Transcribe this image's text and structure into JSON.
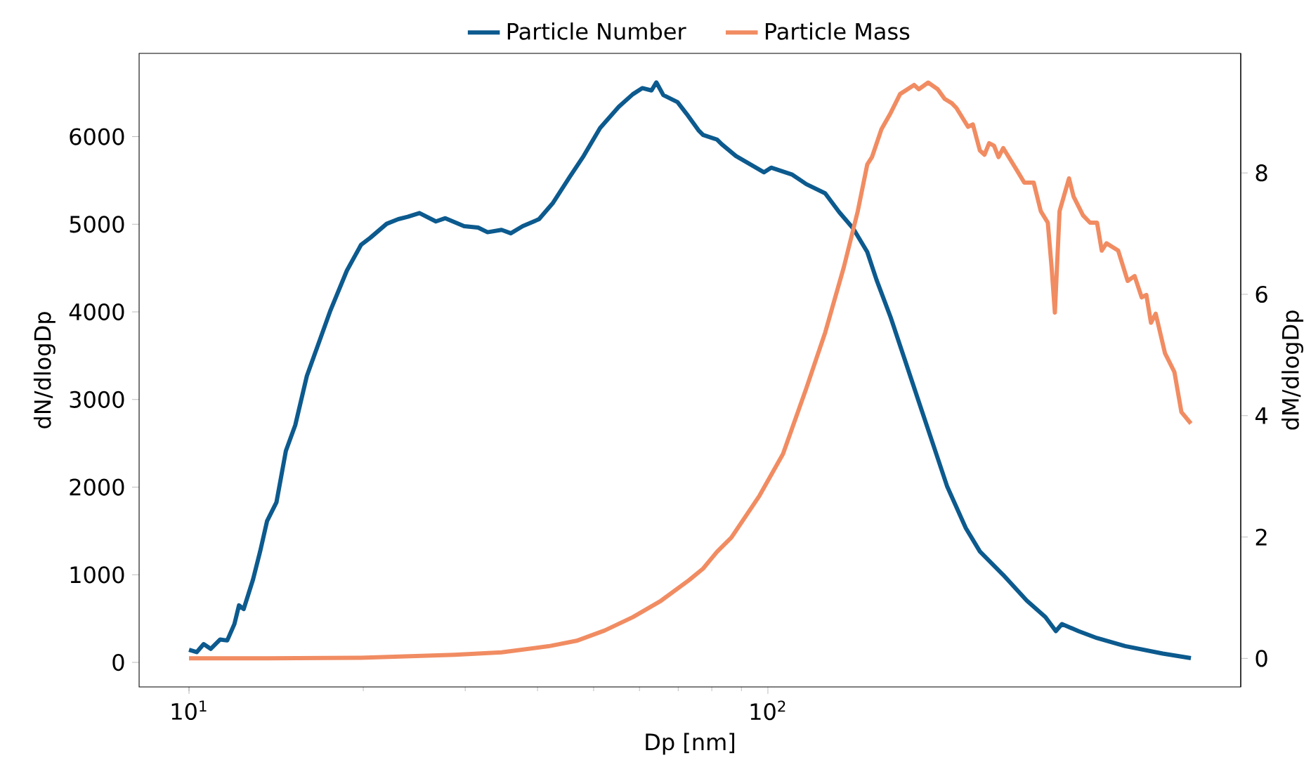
{
  "chart_data": {
    "type": "line",
    "xlabel": "Dp [nm]",
    "ylabel": "dN/dlogDp",
    "y2label": "dM/dlogDp",
    "log": "x",
    "legend": "top",
    "xlim": [
      8.2,
      656
    ],
    "xticks": [
      {
        "value": 10,
        "label": "10$^{1}$"
      },
      {
        "value": 100,
        "label": "10$^{2}$"
      }
    ],
    "ylim": [
      -280,
      6950
    ],
    "yticks": [
      0,
      1000,
      2000,
      3000,
      4000,
      5000,
      6000
    ],
    "y2lim": [
      -0.47,
      9.97
    ],
    "y2ticks": [
      0,
      2,
      4,
      6,
      8
    ],
    "series": [
      {
        "name": "Particle Number",
        "color": "#0c5a8e",
        "x": [
          10.0,
          10.31,
          10.6,
          10.9,
          11.32,
          11.64,
          11.98,
          12.2,
          12.43,
          12.9,
          13.27,
          13.64,
          14.16,
          14.7,
          15.26,
          15.98,
          16.75,
          17.55,
          18.74,
          19.82,
          20.56,
          21.95,
          22.99,
          23.87,
          25.01,
          26.7,
          27.72,
          29.87,
          31.58,
          32.79,
          34.67,
          35.97,
          37.71,
          40.24,
          42.55,
          45.44,
          48.05,
          51.3,
          55.26,
          58.44,
          60.67,
          62.95,
          64.17,
          65.98,
          69.81,
          72.38,
          75.86,
          77.3,
          81.73,
          83.25,
          88.07,
          98.49,
          101.3,
          110.2,
          116.5,
          125.6,
          132.8,
          140.4,
          148.5,
          154.1,
          163.0,
          172.4,
          182.3,
          192.8,
          203.9,
          219.8,
          232.4,
          255.0,
          280.0,
          301.6,
          314.4,
          322.1,
          343.9,
          370.4,
          414.3,
          481.0,
          538.0
        ],
        "values": [
          144,
          117,
          208,
          154,
          261,
          250,
          438,
          651,
          609,
          946,
          1266,
          1612,
          1827,
          2413,
          2708,
          3269,
          3643,
          4016,
          4471,
          4764,
          4845,
          5005,
          5058,
          5085,
          5128,
          5032,
          5069,
          4978,
          4962,
          4909,
          4936,
          4897,
          4978,
          5058,
          5245,
          5538,
          5779,
          6099,
          6340,
          6484,
          6554,
          6527,
          6619,
          6474,
          6394,
          6260,
          6074,
          6019,
          5966,
          5913,
          5779,
          5593,
          5646,
          5566,
          5458,
          5353,
          5138,
          4952,
          4684,
          4364,
          3936,
          3455,
          2974,
          2494,
          2013,
          1532,
          1266,
          998,
          705,
          518,
          357,
          437,
          357,
          277,
          186,
          101,
          48
        ]
      },
      {
        "name": "Particle Mass",
        "color": "#f18c62",
        "axis": "y2",
        "x": [
          10.0,
          13.64,
          19.82,
          28.76,
          34.67,
          41.78,
          46.72,
          52.25,
          58.44,
          65.37,
          73.11,
          77.3,
          81.73,
          86.46,
          96.7,
          106.2,
          116.5,
          125.6,
          135.3,
          143.0,
          148.5,
          151.3,
          157.1,
          163.0,
          169.2,
          178.9,
          182.3,
          189.2,
          196.5,
          202.0,
          207.8,
          211.7,
          221.7,
          226.0,
          232.4,
          236.7,
          241.1,
          245.8,
          250.3,
          255.0,
          269.8,
          277.3,
          287.9,
          296.1,
          304.5,
          309.1,
          313.2,
          319.1,
          331.3,
          337.4,
          350.3,
          360.2,
          370.4,
          377.4,
          384.6,
          402.9,
          418.3,
          430.1,
          442.3,
          450.6,
          459.0,
          467.7,
          485.3,
          503.8,
          518.0,
          538.0
        ],
        "values": [
          0.0,
          0.0,
          0.01,
          0.06,
          0.1,
          0.2,
          0.29,
          0.46,
          0.68,
          0.95,
          1.29,
          1.48,
          1.76,
          1.99,
          2.68,
          3.37,
          4.45,
          5.37,
          6.45,
          7.37,
          8.14,
          8.26,
          8.72,
          8.99,
          9.3,
          9.45,
          9.38,
          9.49,
          9.38,
          9.22,
          9.15,
          9.07,
          8.76,
          8.8,
          8.37,
          8.3,
          8.49,
          8.45,
          8.26,
          8.41,
          8.03,
          7.84,
          7.84,
          7.37,
          7.18,
          6.45,
          5.7,
          7.37,
          7.91,
          7.61,
          7.3,
          7.18,
          7.18,
          6.72,
          6.84,
          6.72,
          6.22,
          6.3,
          5.95,
          5.99,
          5.53,
          5.68,
          5.03,
          4.72,
          4.06,
          3.87
        ]
      }
    ]
  }
}
